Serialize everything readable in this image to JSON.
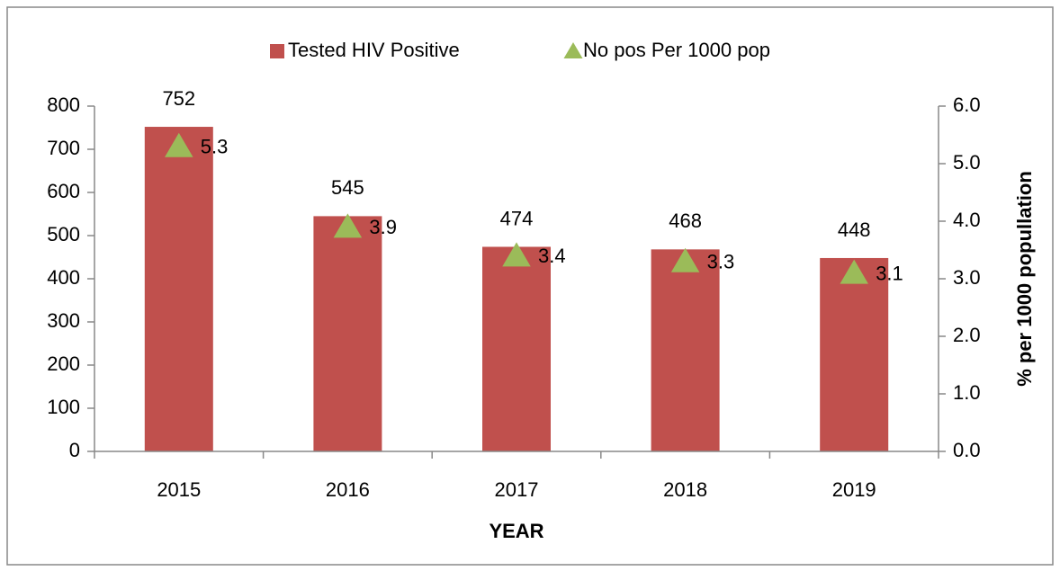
{
  "chart_data": {
    "type": "bar",
    "categories": [
      "2015",
      "2016",
      "2017",
      "2018",
      "2019"
    ],
    "series": [
      {
        "name": "Tested HIV Positive",
        "type": "bar",
        "color": "#c0504d",
        "values": [
          752,
          545,
          474,
          468,
          448
        ]
      },
      {
        "name": "No pos Per 1000 pop",
        "type": "scatter",
        "marker": "triangle",
        "color": "#9bbb59",
        "axis": "y2",
        "values": [
          5.3,
          3.9,
          3.4,
          3.3,
          3.1
        ]
      }
    ],
    "xlabel": "YEAR",
    "y2label": "% per 1000 popullation",
    "ylim": [
      0,
      800
    ],
    "yticks": [
      0,
      100,
      200,
      300,
      400,
      500,
      600,
      700,
      800
    ],
    "y2lim": [
      0,
      6
    ],
    "y2ticks": [
      {
        "value": 0,
        "label": "0.0"
      },
      {
        "value": 1,
        "label": "1.0"
      },
      {
        "value": 2,
        "label": "2.0"
      },
      {
        "value": 3,
        "label": "3.0"
      },
      {
        "value": 4,
        "label": "4.0"
      },
      {
        "value": 5,
        "label": "5.0"
      },
      {
        "value": 6,
        "label": "6.0"
      }
    ],
    "legend": "top",
    "grid": false
  }
}
